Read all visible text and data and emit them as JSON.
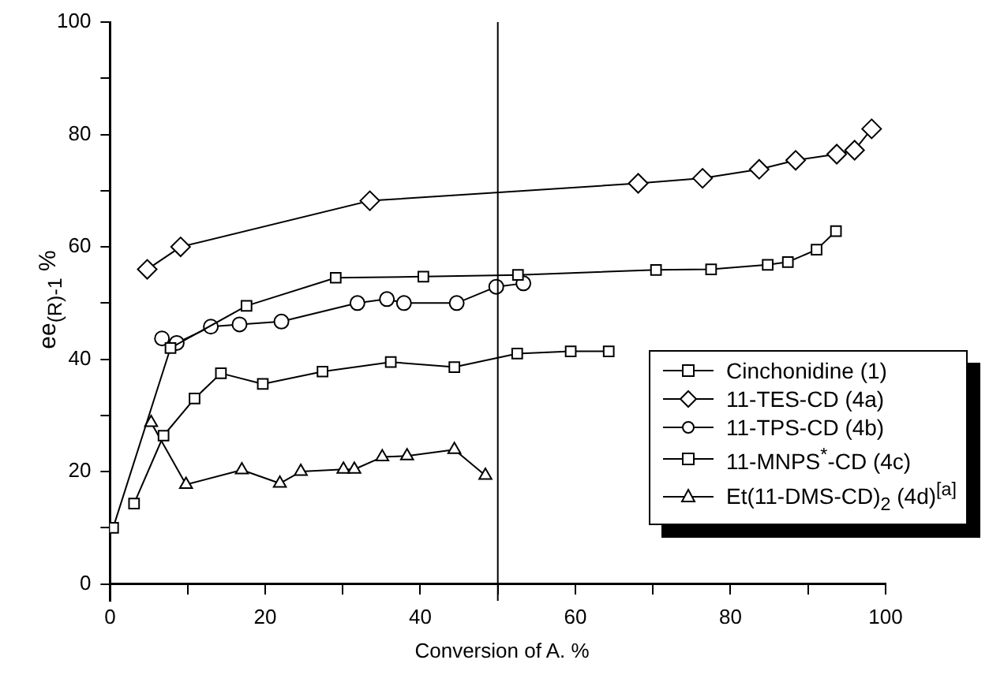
{
  "chart_data": {
    "type": "line",
    "xlabel": "Conversion of A. %",
    "ylabel": "ee$_{(R)-1}$ %",
    "xlim": [
      0,
      100
    ],
    "ylim": [
      -3,
      100
    ],
    "xticks": [
      0,
      {
        "value": 10,
        "label": null
      },
      20,
      {
        "value": 30,
        "label": null
      },
      40,
      {
        "value": 50,
        "label": null
      },
      60,
      {
        "value": 70,
        "label": null
      },
      80,
      {
        "value": 90,
        "label": null
      },
      100
    ],
    "yticks": [
      0,
      {
        "value": 10,
        "label": null
      },
      20,
      {
        "value": 30,
        "label": null
      },
      40,
      {
        "value": 50,
        "label": null
      },
      60,
      {
        "value": 70,
        "label": null
      },
      80,
      {
        "value": 90,
        "label": null
      },
      100
    ],
    "grid": false,
    "legend": "right",
    "line_style": "solid",
    "ref_lines": [
      {
        "axis": "x",
        "value": 50,
        "color": "#000000"
      }
    ],
    "series": [
      {
        "name": "Cinchonidine (1)",
        "color": "#000000",
        "marker": "square",
        "x": [
          0.4,
          7.8,
          17.6,
          29.1,
          40.4,
          52.6,
          70.4,
          77.5,
          84.8,
          87.4,
          91.1,
          93.6
        ],
        "values": [
          10,
          42,
          49.5,
          54.5,
          54.7,
          55,
          55.9,
          56,
          56.8,
          57.3,
          59.5,
          62.8
        ]
      },
      {
        "name": "11-TES-CD (4a)",
        "color": "#000000",
        "marker": "diamond",
        "x": [
          4.8,
          9.1,
          33.5,
          68.1,
          76.4,
          83.7,
          88.4,
          93.7,
          96,
          98.2
        ],
        "values": [
          56,
          60,
          68.2,
          71.3,
          72.2,
          73.8,
          75.4,
          76.5,
          77.2,
          81
        ]
      },
      {
        "name": "11-TPS-CD (4b)",
        "color": "#000000",
        "marker": "circle",
        "x": [
          6.7,
          8.6,
          13,
          16.7,
          22.1,
          31.9,
          35.7,
          37.9,
          44.7,
          49.8,
          53.3
        ],
        "values": [
          43.7,
          42.9,
          45.8,
          46.2,
          46.7,
          50,
          50.7,
          50,
          50,
          52.9,
          53.5
        ]
      },
      {
        "name": "11-MNPS$^{*}$-CD (4c)",
        "color": "#000000",
        "marker": "square",
        "x": [
          3.1,
          6.9,
          10.9,
          14.3,
          19.7,
          27.4,
          36.2,
          44.4,
          52.5,
          59.4,
          64.3
        ],
        "values": [
          14.3,
          26.4,
          33,
          37.5,
          35.6,
          37.8,
          39.5,
          38.6,
          41,
          41.4,
          41.4
        ]
      },
      {
        "name": "Et(11-DMS-CD)$_{2}$ (4d)$^{[a]}$",
        "color": "#000000",
        "marker": "triangle",
        "x": [
          5.3,
          9.8,
          17,
          21.9,
          24.6,
          30.1,
          31.5,
          35.1,
          38.3,
          44.4,
          48.4
        ],
        "values": [
          28.7,
          17.7,
          20.3,
          17.9,
          20,
          20.4,
          20.4,
          22.6,
          22.8,
          23.9,
          19.3
        ]
      }
    ]
  }
}
